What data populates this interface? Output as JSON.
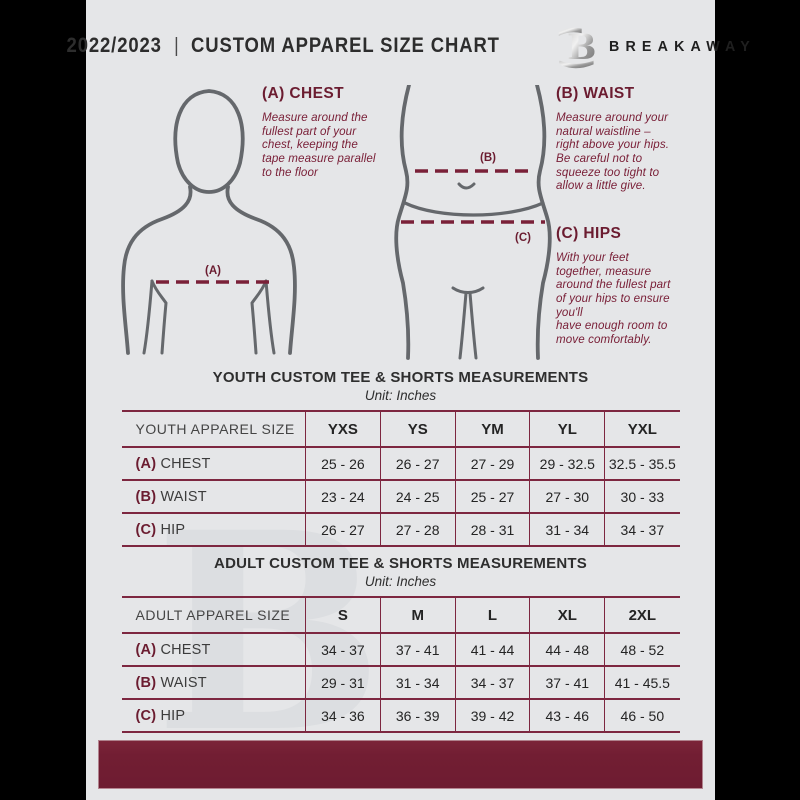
{
  "header": {
    "year": "2022/2023",
    "divider": "|",
    "title": "CUSTOM APPAREL SIZE CHART",
    "brand": "BREAKAWAY",
    "logo_letter": "B"
  },
  "colors": {
    "maroon": "#721e33",
    "table_border": "#7d2740",
    "heading_maroon": "#6b1c30",
    "body_text_maroon": "#7a2038",
    "page_bg": "#e5e6e8",
    "figure_stroke": "#65686c",
    "title_dark": "#2d2d2d",
    "outer_bg": "#000000"
  },
  "guide": {
    "chest": {
      "heading": "(A) CHEST",
      "marker": "(A)",
      "text": "Measure around the\nfullest part of your\nchest, keeping the\ntape measure parallel\nto the floor"
    },
    "waist": {
      "heading": "(B) WAIST",
      "marker": "(B)",
      "text": "Measure around your\nnatural waistline –\nright above your hips.\nBe careful not to\nsqueeze too tight to\nallow a little give."
    },
    "hips": {
      "heading": "(C) HIPS",
      "marker": "(C)",
      "text": "With your feet\ntogether, measure\naround the fullest part\nof your hips to ensure\nyou'll\nhave enough room to\nmove comfortably."
    }
  },
  "youth_table": {
    "title": "YOUTH CUSTOM TEE & SHORTS MEASUREMENTS",
    "unit": "Unit: Inches",
    "columns": [
      "YOUTH APPAREL SIZE",
      "YXS",
      "YS",
      "YM",
      "YL",
      "YXL"
    ],
    "rows": [
      {
        "prefix": "(A)",
        "label": "CHEST",
        "values": [
          "25 - 26",
          "26 - 27",
          "27 - 29",
          "29 - 32.5",
          "32.5 - 35.5"
        ]
      },
      {
        "prefix": "(B)",
        "label": "WAIST",
        "values": [
          "23 - 24",
          "24 - 25",
          "25 - 27",
          "27 - 30",
          "30 - 33"
        ]
      },
      {
        "prefix": "(C)",
        "label": "HIP",
        "values": [
          "26 - 27",
          "27 - 28",
          "28 - 31",
          "31 - 34",
          "34 - 37"
        ]
      }
    ]
  },
  "adult_table": {
    "title": "ADULT CUSTOM TEE & SHORTS MEASUREMENTS",
    "unit": "Unit: Inches",
    "columns": [
      "ADULT APPAREL SIZE",
      "S",
      "M",
      "L",
      "XL",
      "2XL"
    ],
    "rows": [
      {
        "prefix": "(A)",
        "label": "CHEST",
        "values": [
          "34 - 37",
          "37 - 41",
          "41 - 44",
          "44 - 48",
          "48 - 52"
        ]
      },
      {
        "prefix": "(B)",
        "label": "WAIST",
        "values": [
          "29 - 31",
          "31 - 34",
          "34 - 37",
          "37 - 41",
          "41 - 45.5"
        ]
      },
      {
        "prefix": "(C)",
        "label": "HIP",
        "values": [
          "34 - 36",
          "36 - 39",
          "39 - 42",
          "43 - 46",
          "46 - 50"
        ]
      }
    ]
  },
  "watermark": "B"
}
